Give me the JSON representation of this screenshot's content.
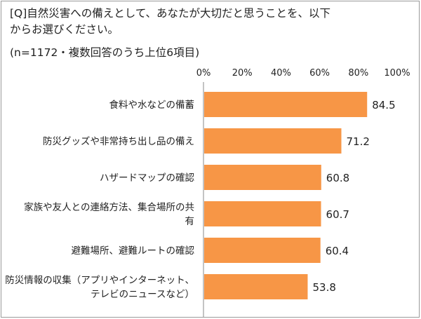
{
  "question": "[Q]自然災害への備えとして、あなたが大切だと思うことを、以下からお選びください。",
  "note": "(n=1172・複数回答のうち上位6項目)",
  "colors": {
    "bar": "#f79646",
    "axis": "#888888",
    "border": "#9a9a9a"
  },
  "chart_data": {
    "type": "bar",
    "orientation": "horizontal",
    "xlim": [
      0,
      100
    ],
    "ticks": [
      "0%",
      "20%",
      "40%",
      "60%",
      "80%",
      "100%"
    ],
    "categories": [
      [
        "食料や水などの備蓄"
      ],
      [
        "防災グッズや非常持ち出し品の備え"
      ],
      [
        "ハザードマップの確認"
      ],
      [
        "家族や友人との連絡方法、集合場所の共",
        "有"
      ],
      [
        "避難場所、避難ルートの確認"
      ],
      [
        "防災情報の収集（アプリやインターネット、",
        "テレビのニュースなど）"
      ]
    ],
    "values": [
      84.5,
      71.2,
      60.8,
      60.7,
      60.4,
      53.8
    ],
    "value_labels": [
      "84.5",
      "71.2",
      "60.8",
      "60.7",
      "60.4",
      "53.8"
    ],
    "grid": false
  }
}
